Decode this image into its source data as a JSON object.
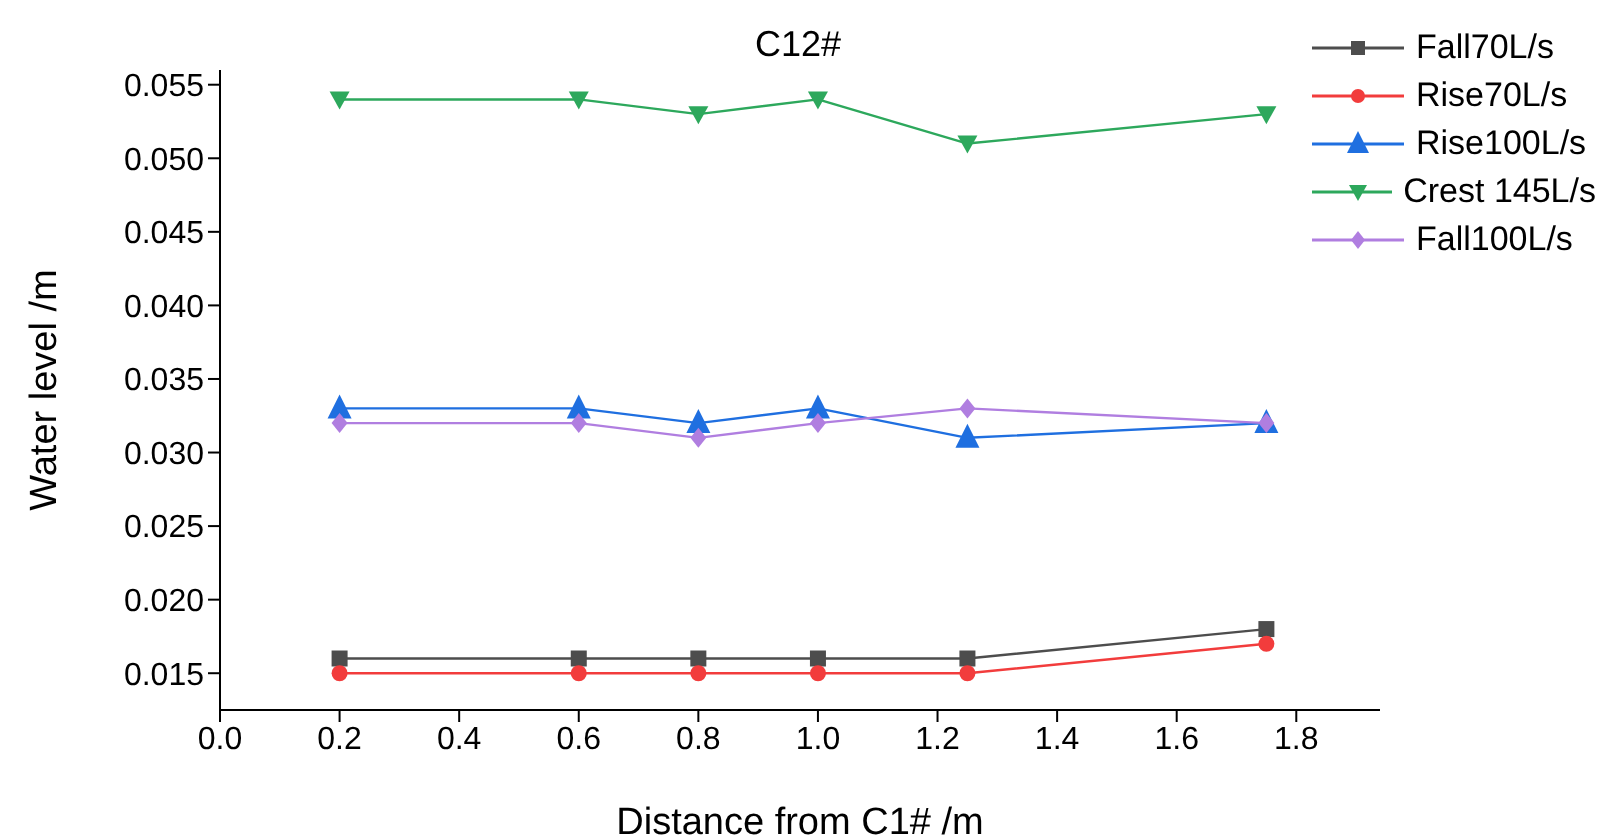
{
  "chart_data": {
    "type": "line",
    "title": "C12#",
    "xlabel": "Distance from C1# /m",
    "ylabel": "Water level /m",
    "x": [
      0.2,
      0.6,
      0.8,
      1.0,
      1.25,
      1.75
    ],
    "series": [
      {
        "name": "Fall70L/s",
        "color": "#4d4d4d",
        "marker": "square",
        "values": [
          0.016,
          0.016,
          0.016,
          0.016,
          0.016,
          0.018
        ]
      },
      {
        "name": "Rise70L/s",
        "color": "#f23c3c",
        "marker": "circle",
        "values": [
          0.015,
          0.015,
          0.015,
          0.015,
          0.015,
          0.017
        ]
      },
      {
        "name": "Rise100L/s",
        "color": "#1f6fe0",
        "marker": "triangle",
        "values": [
          0.033,
          0.033,
          0.032,
          0.033,
          0.031,
          0.032
        ]
      },
      {
        "name": "Crest 145L/s",
        "color": "#2da85c",
        "marker": "triangle-down",
        "values": [
          0.054,
          0.054,
          0.053,
          0.054,
          0.051,
          0.053
        ]
      },
      {
        "name": "Fall100L/s",
        "color": "#b07ee0",
        "marker": "diamond",
        "values": [
          0.032,
          0.032,
          0.031,
          0.032,
          0.033,
          0.032
        ]
      }
    ],
    "xlim": [
      0,
      1.94
    ],
    "xticks": [
      {
        "value": 0,
        "label": "0.0"
      },
      0.2,
      0.4,
      0.6,
      0.8,
      {
        "value": 1,
        "label": "1.0"
      },
      1.2,
      1.4,
      1.6,
      1.8
    ],
    "ylim": [
      0.0125,
      0.056
    ],
    "yticks": [
      {
        "value": 0.015,
        "label": "0.015"
      },
      {
        "value": 0.02,
        "label": "0.020"
      },
      0.025,
      {
        "value": 0.03,
        "label": "0.030"
      },
      0.035,
      {
        "value": 0.04,
        "label": "0.040"
      },
      0.045,
      {
        "value": 0.05,
        "label": "0.050"
      },
      0.055
    ],
    "grid": false,
    "legend": "top right",
    "line_style": "solid"
  }
}
